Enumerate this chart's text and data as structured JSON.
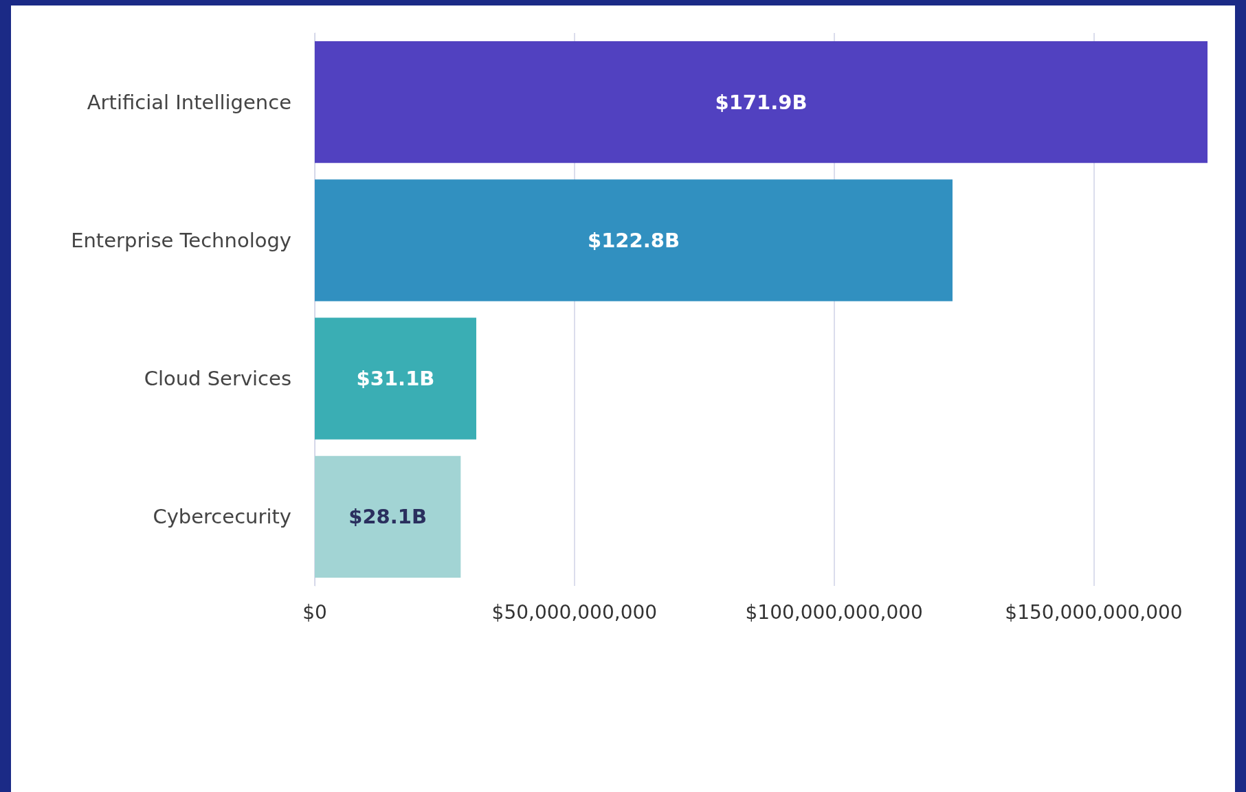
{
  "chart_data": {
    "type": "bar",
    "orientation": "horizontal",
    "categories": [
      "Artificial Intelligence",
      "Enterprise Technology",
      "Cloud Services",
      "Cybercecurity"
    ],
    "values": [
      171900000000,
      122800000000,
      31100000000,
      28100000000
    ],
    "value_labels": [
      "$171.9B",
      "$122.8B",
      "$31.1B",
      "$28.1B"
    ],
    "colors": [
      "#5141c0",
      "#3190c0",
      "#3aaeb4",
      "#a2d4d4"
    ],
    "xlim": [
      0,
      171900000000
    ],
    "xticks": [
      {
        "value": 0,
        "label": "$0"
      },
      {
        "value": 50000000000,
        "label": "$50,000,000,000"
      },
      {
        "value": 100000000000,
        "label": "$100,000,000,000"
      },
      {
        "value": 150000000000,
        "label": "$150,000,000,000"
      }
    ],
    "grid": "x"
  }
}
